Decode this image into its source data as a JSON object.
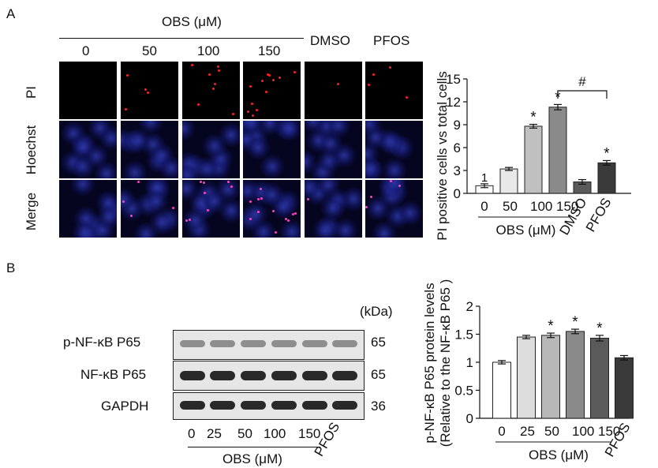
{
  "panel_a": {
    "letter": "A",
    "group_label": "OBS (μM)",
    "columns": [
      "0",
      "50",
      "100",
      "150",
      "DMSO",
      "PFOS"
    ],
    "rows": [
      "PI",
      "Hoechst",
      "Merge"
    ]
  },
  "panel_b": {
    "letter": "B",
    "kda_label": "(kDa)",
    "proteins": [
      {
        "name": "p-NF-κB P65",
        "kda": "65"
      },
      {
        "name": "NF-κB P65",
        "kda": "65"
      },
      {
        "name": "GAPDH",
        "kda": "36"
      }
    ],
    "lanes": [
      "0",
      "25",
      "50",
      "100",
      "150"
    ],
    "lane_extra": "PFOS",
    "group_label": "OBS (μM)"
  },
  "chart_data": [
    {
      "type": "bar",
      "categories": [
        "0",
        "50",
        "100",
        "150",
        "DMSO",
        "PFOS"
      ],
      "values": [
        1.0,
        3.2,
        8.8,
        11.3,
        1.5,
        4.0
      ],
      "errors": [
        0.25,
        0.2,
        0.25,
        0.35,
        0.3,
        0.3
      ],
      "bar_colors": [
        "#ffffff",
        "#e8e8e8",
        "#c0c0c0",
        "#8a8a8a",
        "#5a5a5a",
        "#3a3a3a"
      ],
      "significance": [
        "1",
        "",
        "*",
        "*",
        "",
        "*"
      ],
      "bracket": {
        "from": "150",
        "to": "PFOS",
        "label": "#"
      },
      "ylabel": "PI positive cells vs total cells",
      "xlabel": "OBS (μM)",
      "ylim": [
        0,
        15
      ],
      "yticks": [
        "0",
        "3",
        "6",
        "9",
        "12",
        "15"
      ]
    },
    {
      "type": "bar",
      "categories": [
        "0",
        "25",
        "50",
        "100",
        "150",
        "PFOS"
      ],
      "values": [
        1.0,
        1.45,
        1.48,
        1.55,
        1.43,
        1.08
      ],
      "errors": [
        0.03,
        0.03,
        0.04,
        0.04,
        0.05,
        0.04
      ],
      "bar_colors": [
        "#ffffff",
        "#dcdcdc",
        "#b8b8b8",
        "#8a8a8a",
        "#5a5a5a",
        "#3a3a3a"
      ],
      "significance": [
        "",
        "",
        "*",
        "*",
        "*",
        ""
      ],
      "ylabel_line1": "p-NF-κB P65 protein levels",
      "ylabel_line2": "(Relative to the NF-κB P65 )",
      "xlabel": "OBS (μM)",
      "ylim": [
        0,
        2
      ],
      "yticks": [
        "0",
        "0.5",
        "1",
        "1.5",
        "2"
      ]
    }
  ]
}
